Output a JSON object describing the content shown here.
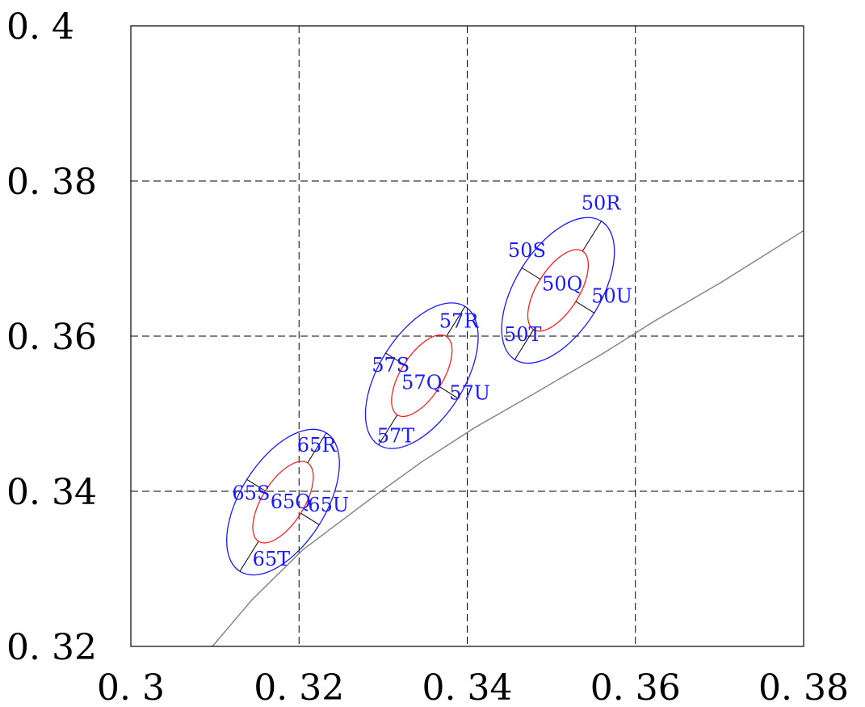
{
  "chart_data": {
    "type": "scatter",
    "title": "",
    "xlabel": "",
    "ylabel": "",
    "xlim": [
      0.3,
      0.38
    ],
    "ylim": [
      0.32,
      0.4
    ],
    "grid": true,
    "x_ticks": [
      "0. 3",
      "0. 32",
      "0. 34",
      "0. 36",
      "0. 38"
    ],
    "y_ticks": [
      "0. 32",
      "0. 34",
      "0. 36",
      "0. 38",
      "0. 4"
    ],
    "x_tick_values": [
      0.3,
      0.32,
      0.34,
      0.36,
      0.38
    ],
    "y_tick_values": [
      0.32,
      0.34,
      0.36,
      0.38,
      0.4
    ],
    "colors": {
      "outer": "#1a1aff",
      "inner": "#ff2020",
      "axis_line": "#000000",
      "locus": "#808080",
      "labels": "#1a1aff"
    },
    "locus": {
      "x": [
        0.3097,
        0.3144,
        0.3205,
        0.3286,
        0.3346,
        0.3409,
        0.3475,
        0.3562,
        0.3622,
        0.37,
        0.38
      ],
      "y": [
        0.32,
        0.326,
        0.3325,
        0.3391,
        0.3438,
        0.3482,
        0.3523,
        0.3578,
        0.3619,
        0.3668,
        0.3736
      ]
    },
    "ellipses": [
      {
        "group": "65",
        "center": [
          0.3181,
          0.3386
        ],
        "outer_a": 0.0097,
        "outer_b": 0.0055,
        "inner_a": 0.0055,
        "inner_b": 0.0027,
        "angle_deg": 58,
        "labels": {
          "Q": "65Q",
          "R": "65R",
          "S": "65S",
          "T": "65T",
          "U": "65U"
        },
        "label_pos": {
          "Q": [
            0.319,
            0.3378
          ],
          "R": [
            0.3221,
            0.3451
          ],
          "S": [
            0.3143,
            0.3389
          ],
          "T": [
            0.3167,
            0.3304
          ],
          "U": [
            0.3235,
            0.3374
          ]
        }
      },
      {
        "group": "57",
        "center": [
          0.3346,
          0.3549
        ],
        "outer_a": 0.0097,
        "outer_b": 0.0055,
        "inner_a": 0.0055,
        "inner_b": 0.0027,
        "angle_deg": 58,
        "labels": {
          "Q": "57Q",
          "R": "57R",
          "S": "57S",
          "T": "57T",
          "U": "57U"
        },
        "label_pos": {
          "Q": [
            0.3346,
            0.3532
          ],
          "R": [
            0.339,
            0.3611
          ],
          "S": [
            0.3309,
            0.3554
          ],
          "T": [
            0.3315,
            0.3463
          ],
          "U": [
            0.3403,
            0.3518
          ]
        }
      },
      {
        "group": "50",
        "center": [
          0.3508,
          0.3659
        ],
        "outer_a": 0.0097,
        "outer_b": 0.0055,
        "inner_a": 0.0055,
        "inner_b": 0.0027,
        "angle_deg": 58,
        "labels": {
          "Q": "50Q",
          "R": "50R",
          "S": "50S",
          "T": "50T",
          "U": "50U"
        },
        "label_pos": {
          "Q": [
            0.3513,
            0.3659
          ],
          "R": [
            0.3559,
            0.3763
          ],
          "S": [
            0.3471,
            0.3702
          ],
          "T": [
            0.3466,
            0.3594
          ],
          "U": [
            0.3572,
            0.3643
          ]
        }
      }
    ]
  }
}
